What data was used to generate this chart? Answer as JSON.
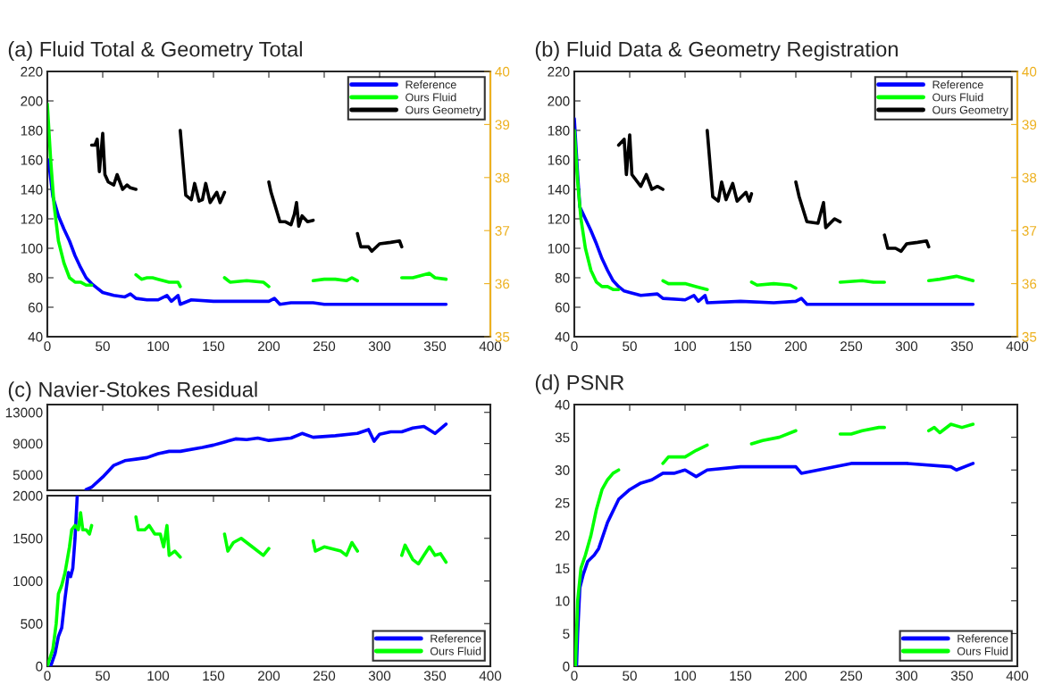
{
  "chart_data": [
    {
      "type": "line",
      "title": "(a) Fluid Total & Geometry Total",
      "xlim": [
        0,
        400
      ],
      "xticks": [
        0,
        50,
        100,
        150,
        200,
        250,
        300,
        350,
        400
      ],
      "ylim": [
        40,
        220
      ],
      "yticks": [
        40,
        60,
        80,
        100,
        120,
        140,
        160,
        180,
        200,
        220
      ],
      "y2lim": [
        35,
        40
      ],
      "y2ticks": [
        35,
        36,
        37,
        38,
        39,
        40
      ],
      "legend": "top right",
      "grid": false,
      "series": [
        {
          "name": "Reference",
          "color": "#0000ff",
          "x": [
            1,
            5,
            10,
            15,
            20,
            25,
            30,
            35,
            40,
            45,
            50,
            60,
            70,
            75,
            80,
            90,
            100,
            108,
            112,
            118,
            120,
            130,
            150,
            160,
            180,
            200,
            205,
            210,
            220,
            240,
            250,
            260,
            280,
            300,
            320,
            340,
            360
          ],
          "values": [
            160,
            135,
            122,
            113,
            105,
            95,
            87,
            80,
            76,
            73,
            70,
            68,
            67,
            69,
            66,
            65,
            65,
            68,
            64,
            68,
            62,
            65,
            64,
            64,
            64,
            64,
            66,
            62,
            63,
            63,
            62,
            62,
            62,
            62,
            62,
            62,
            62
          ]
        },
        {
          "name": "Ours Fluid",
          "color": "#00ff00",
          "x": [
            0,
            3,
            6,
            10,
            15,
            20,
            25,
            30,
            35,
            40,
            60,
            80,
            85,
            90,
            95,
            100,
            110,
            118,
            120,
            140,
            160,
            165,
            180,
            195,
            200,
            220,
            240,
            250,
            260,
            270,
            275,
            280,
            300,
            320,
            330,
            345,
            350,
            360
          ],
          "values": [
            198,
            160,
            130,
            105,
            90,
            80,
            77,
            77,
            75,
            75,
            null,
            82,
            79,
            80,
            80,
            79,
            77,
            77,
            74,
            null,
            80,
            77,
            78,
            77,
            74,
            null,
            78,
            79,
            79,
            78,
            80,
            78,
            null,
            80,
            80,
            83,
            80,
            79
          ]
        },
        {
          "name": "Ours Geometry",
          "color": "#000000",
          "x": [
            40,
            43,
            45,
            47,
            50,
            52,
            55,
            60,
            63,
            68,
            72,
            75,
            80,
            100,
            120,
            125,
            130,
            133,
            137,
            140,
            143,
            147,
            153,
            156,
            160,
            180,
            200,
            202,
            210,
            215,
            220,
            223,
            225,
            227,
            230,
            235,
            240,
            260,
            280,
            283,
            290,
            293,
            300,
            310,
            318,
            320
          ],
          "values": [
            170,
            170,
            174,
            152,
            178,
            150,
            145,
            143,
            150,
            140,
            143,
            141,
            140,
            null,
            180,
            136,
            133,
            144,
            132,
            133,
            144,
            131,
            138,
            131,
            138,
            null,
            145,
            138,
            118,
            118,
            116,
            123,
            131,
            115,
            122,
            118,
            119,
            null,
            110,
            101,
            101,
            98,
            103,
            104,
            105,
            101
          ]
        }
      ]
    },
    {
      "type": "line",
      "title": "(b) Fluid Data & Geometry Registration",
      "xlim": [
        0,
        400
      ],
      "xticks": [
        0,
        50,
        100,
        150,
        200,
        250,
        300,
        350,
        400
      ],
      "ylim": [
        40,
        220
      ],
      "yticks": [
        40,
        60,
        80,
        100,
        120,
        140,
        160,
        180,
        200,
        220
      ],
      "y2lim": [
        35,
        40
      ],
      "y2ticks": [
        35,
        36,
        37,
        38,
        39,
        40
      ],
      "legend": "top right",
      "grid": false,
      "series": [
        {
          "name": "Reference",
          "color": "#0000ff",
          "x": [
            0,
            3,
            5,
            10,
            15,
            20,
            25,
            30,
            35,
            40,
            45,
            50,
            60,
            75,
            80,
            100,
            108,
            112,
            118,
            120,
            150,
            180,
            200,
            205,
            210,
            250,
            300,
            360
          ],
          "values": [
            188,
            150,
            128,
            120,
            112,
            103,
            93,
            85,
            78,
            74,
            71,
            70,
            68,
            69,
            66,
            65,
            68,
            64,
            68,
            63,
            64,
            63,
            64,
            66,
            62,
            62,
            62,
            62
          ]
        },
        {
          "name": "Ours Fluid",
          "color": "#00ff00",
          "x": [
            0,
            3,
            6,
            10,
            15,
            20,
            25,
            30,
            35,
            40,
            60,
            80,
            85,
            100,
            110,
            120,
            140,
            160,
            165,
            180,
            195,
            200,
            220,
            240,
            260,
            270,
            280,
            300,
            320,
            330,
            345,
            360
          ],
          "values": [
            180,
            145,
            120,
            100,
            85,
            77,
            74,
            74,
            72,
            72,
            null,
            78,
            76,
            76,
            74,
            72,
            null,
            77,
            75,
            76,
            75,
            73,
            null,
            77,
            78,
            77,
            77,
            null,
            78,
            79,
            81,
            78
          ]
        },
        {
          "name": "Ours Geometry",
          "color": "#000000",
          "x": [
            40,
            45,
            47,
            50,
            52,
            60,
            65,
            70,
            75,
            80,
            100,
            120,
            125,
            130,
            133,
            137,
            143,
            147,
            155,
            158,
            160,
            180,
            200,
            203,
            210,
            220,
            225,
            227,
            235,
            240,
            260,
            280,
            283,
            290,
            295,
            300,
            310,
            318,
            320
          ],
          "values": [
            170,
            174,
            150,
            177,
            150,
            142,
            150,
            140,
            142,
            140,
            null,
            180,
            135,
            132,
            145,
            133,
            144,
            132,
            138,
            132,
            137,
            null,
            145,
            135,
            118,
            117,
            131,
            114,
            120,
            118,
            null,
            109,
            100,
            100,
            98,
            103,
            104,
            105,
            101
          ]
        }
      ]
    },
    {
      "type": "line",
      "title": "(c) Navier-Stokes Residual",
      "xlim": [
        0,
        400
      ],
      "xticks": [
        0,
        50,
        100,
        150,
        200,
        250,
        300,
        350,
        400
      ],
      "ylim": [
        3000,
        14000
      ],
      "yticks": [
        5000,
        9000,
        13000
      ],
      "tick_labels": "y",
      "grid": false,
      "series": [
        {
          "color": "#0000ff",
          "x": [
            35,
            40,
            50,
            60,
            70,
            80,
            90,
            100,
            110,
            120,
            140,
            150,
            160,
            170,
            180,
            190,
            200,
            220,
            230,
            240,
            260,
            280,
            290,
            295,
            300,
            310,
            320,
            330,
            340,
            350,
            360
          ],
          "values": [
            3100,
            3400,
            4700,
            6200,
            6800,
            7000,
            7200,
            7700,
            8000,
            8000,
            8500,
            8800,
            9200,
            9600,
            9500,
            9700,
            9400,
            9700,
            10300,
            9800,
            10000,
            10300,
            10800,
            9300,
            10200,
            10500,
            10500,
            11000,
            11200,
            10300,
            11500
          ]
        }
      ]
    },
    {
      "type": "line",
      "xlim": [
        0,
        400
      ],
      "xticks": [
        0,
        50,
        100,
        150,
        200,
        250,
        300,
        350,
        400
      ],
      "ylim": [
        0,
        2000
      ],
      "yticks": [
        0,
        500,
        1000,
        1500,
        2000
      ],
      "legend": "bottom right",
      "grid": false,
      "series": [
        {
          "name": "Reference",
          "color": "#0000ff",
          "x": [
            3,
            7,
            10,
            13,
            16,
            19,
            21,
            23,
            25,
            27
          ],
          "values": [
            0,
            150,
            350,
            450,
            800,
            1100,
            1050,
            1150,
            1500,
            2000
          ]
        },
        {
          "name": "Ours Fluid",
          "color": "#00ff00",
          "x": [
            0,
            5,
            8,
            10,
            13,
            16,
            20,
            22,
            25,
            28,
            30,
            32,
            35,
            38,
            40,
            60,
            80,
            82,
            88,
            92,
            97,
            102,
            105,
            108,
            110,
            115,
            120,
            140,
            160,
            163,
            168,
            175,
            185,
            195,
            200,
            220,
            240,
            242,
            250,
            265,
            270,
            275,
            280,
            300,
            320,
            323,
            330,
            335,
            340,
            345,
            350,
            355,
            360
          ],
          "values": [
            0,
            200,
            500,
            850,
            950,
            1100,
            1400,
            1600,
            1650,
            1600,
            1800,
            1600,
            1600,
            1550,
            1650,
            null,
            1750,
            1600,
            1600,
            1650,
            1550,
            1550,
            1400,
            1650,
            1300,
            1350,
            1280,
            null,
            1550,
            1350,
            1450,
            1500,
            1400,
            1300,
            1380,
            null,
            1470,
            1350,
            1400,
            1350,
            1300,
            1450,
            1350,
            null,
            1300,
            1420,
            1250,
            1200,
            1300,
            1400,
            1300,
            1320,
            1220
          ]
        }
      ]
    },
    {
      "type": "line",
      "title": "(d) PSNR",
      "xlim": [
        0,
        400
      ],
      "xticks": [
        0,
        50,
        100,
        150,
        200,
        250,
        300,
        350,
        400
      ],
      "ylim": [
        0,
        40
      ],
      "yticks": [
        0,
        5,
        10,
        15,
        20,
        25,
        30,
        35,
        40
      ],
      "legend": "bottom right",
      "grid": false,
      "series": [
        {
          "name": "Reference",
          "color": "#0000ff",
          "x": [
            2,
            3,
            5,
            8,
            12,
            18,
            22,
            30,
            40,
            50,
            60,
            70,
            80,
            90,
            100,
            110,
            120,
            150,
            200,
            205,
            250,
            300,
            340,
            345,
            360
          ],
          "values": [
            0,
            5,
            12,
            14,
            16,
            17,
            18,
            22,
            25.5,
            27,
            28,
            28.5,
            29.5,
            29.5,
            30,
            29,
            30,
            30.5,
            30.5,
            29.5,
            31,
            31,
            30.5,
            30,
            31
          ]
        },
        {
          "name": "Ours Fluid",
          "color": "#00ff00",
          "x": [
            1,
            3,
            6,
            10,
            15,
            20,
            25,
            30,
            35,
            40,
            60,
            80,
            85,
            100,
            110,
            120,
            140,
            160,
            170,
            185,
            200,
            220,
            240,
            250,
            260,
            275,
            280,
            300,
            320,
            325,
            330,
            340,
            350,
            360
          ],
          "values": [
            0,
            10,
            15,
            17,
            20,
            24,
            27,
            28.5,
            29.5,
            30,
            null,
            31,
            32,
            32,
            33,
            33.8,
            null,
            34,
            34.5,
            35,
            36,
            null,
            35.5,
            35.5,
            36,
            36.5,
            36.5,
            null,
            36,
            36.5,
            35.7,
            37,
            36.5,
            37
          ]
        }
      ]
    }
  ]
}
